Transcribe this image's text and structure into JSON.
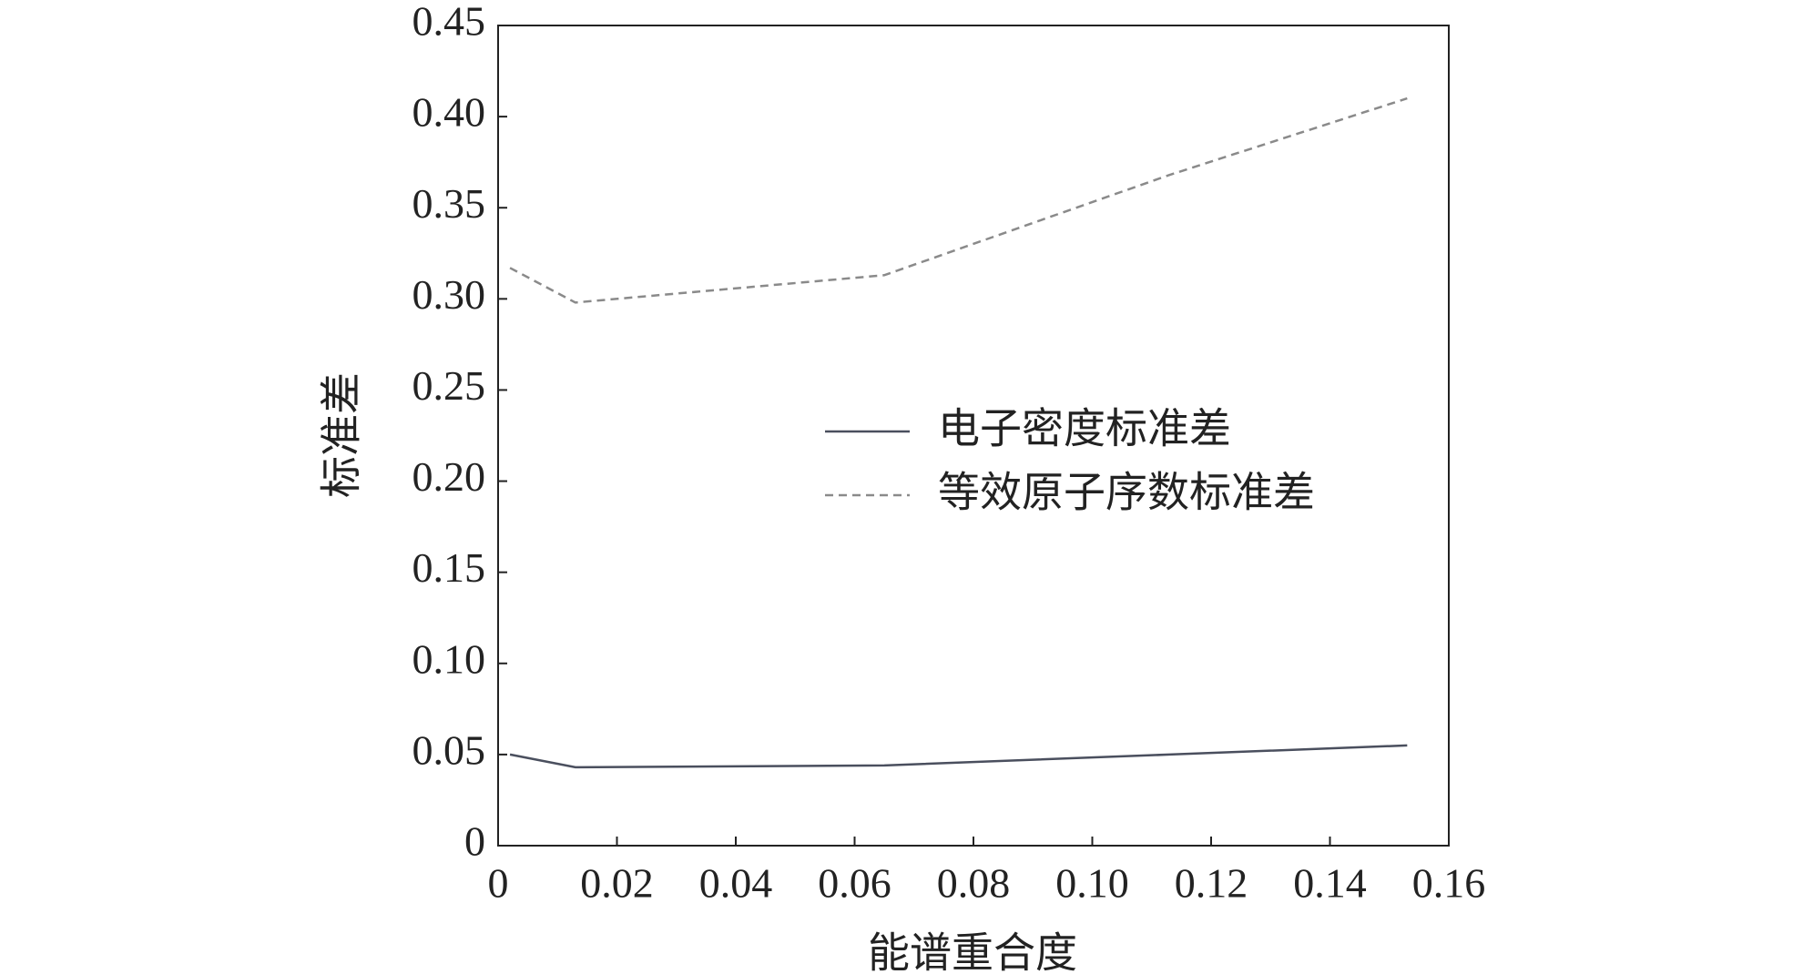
{
  "chart_data": {
    "type": "line",
    "xlabel": "能谱重合度",
    "ylabel": "标准差",
    "x": [
      0.002,
      0.013,
      0.065,
      0.113,
      0.153
    ],
    "series": [
      {
        "name": "电子密度标准差",
        "color": "#4a4f5e",
        "dash": false,
        "values": [
          0.05,
          0.043,
          0.044,
          0.05,
          0.055
        ]
      },
      {
        "name": "等效原子序数标准差",
        "color": "#8a8a8a",
        "dash": true,
        "values": [
          0.317,
          0.298,
          0.313,
          0.368,
          0.41
        ]
      }
    ],
    "xlim": [
      0,
      0.16
    ],
    "xticks": [
      0,
      0.02,
      0.04,
      0.06,
      0.08,
      {
        "value": 0.1,
        "label": "0.10"
      },
      0.12,
      0.14,
      0.16
    ],
    "ylim": [
      0,
      0.45
    ],
    "yticks": [
      0,
      0.05,
      {
        "value": 0.1,
        "label": "0.10"
      },
      0.15,
      {
        "value": 0.2,
        "label": "0.20"
      },
      0.25,
      {
        "value": 0.3,
        "label": "0.30"
      },
      0.35,
      {
        "value": 0.4,
        "label": "0.40"
      },
      0.45
    ],
    "legend": "center-right"
  }
}
